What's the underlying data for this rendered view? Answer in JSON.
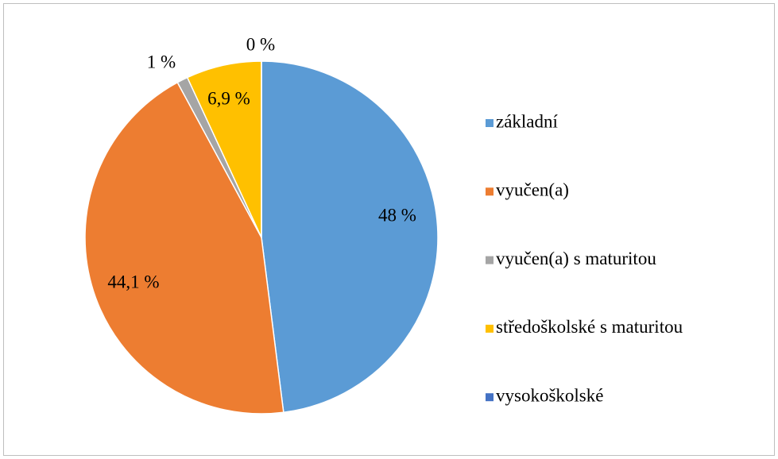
{
  "chart_data": {
    "type": "pie",
    "categories": [
      "základní",
      "vyučen(a)",
      "vyučen(a) s maturitou",
      "středoškolské s maturitou",
      "vysokoškolské"
    ],
    "values": [
      48,
      44.1,
      1,
      6.9,
      0
    ],
    "value_labels": [
      "48 %",
      "44,1 %",
      "1 %",
      "6,9 %",
      "0 %"
    ],
    "colors": [
      "#5b9bd5",
      "#ed7d31",
      "#a5a5a5",
      "#ffc000",
      "#4472c4"
    ],
    "legend": "right"
  }
}
